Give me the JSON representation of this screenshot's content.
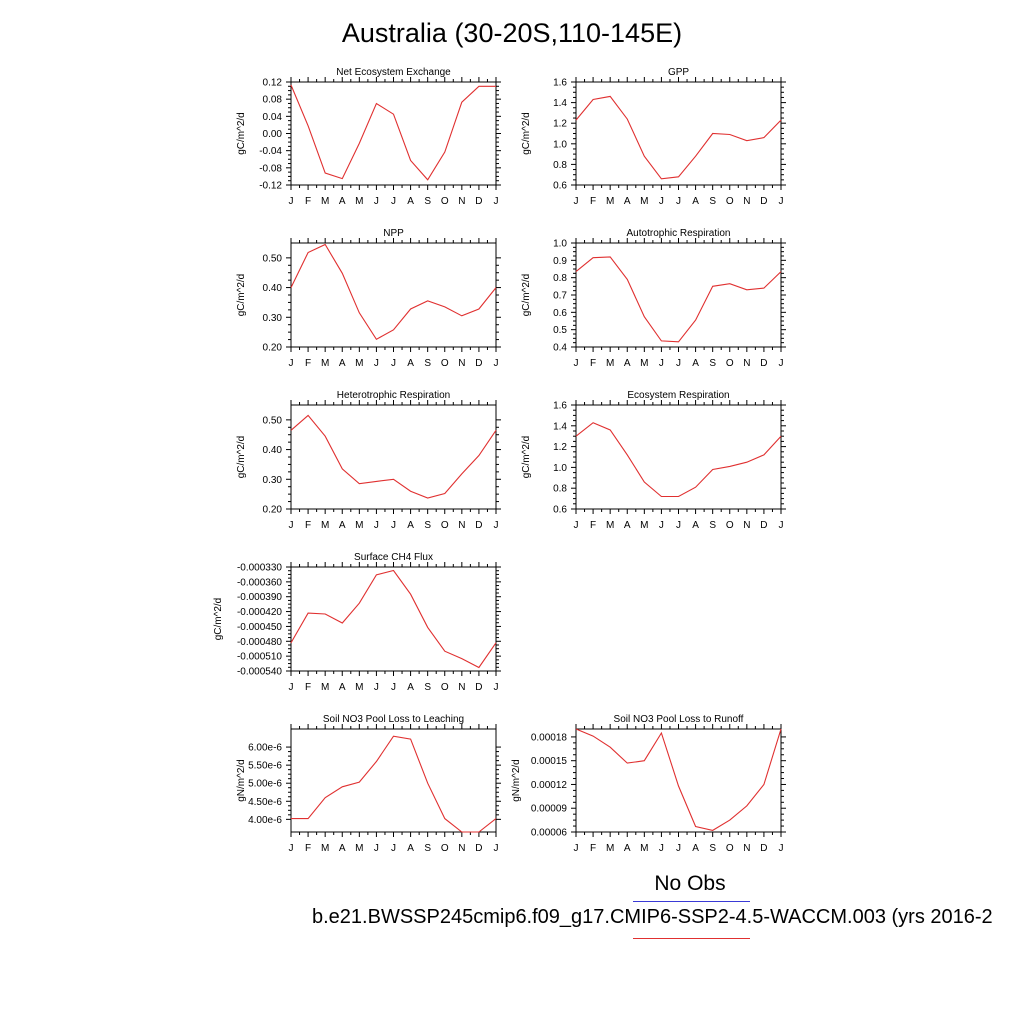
{
  "title": "Australia (30-20S,110-145E)",
  "legend": {
    "obs_label": "No Obs",
    "obs_color": "#3a3ad6",
    "case_label": "b.e21.BWSSP245cmip6.f09_g17.CMIP6-SSP2-4.5-WACCM.003 (yrs 2016-2",
    "case_color": "#e03030"
  },
  "chart_data": [
    {
      "type": "line",
      "title": "Net Ecosystem Exchange",
      "ylabel": "gC/m^2/d",
      "categories": [
        "J",
        "F",
        "M",
        "A",
        "M",
        "J",
        "J",
        "A",
        "S",
        "O",
        "N",
        "D",
        "J"
      ],
      "ylim": [
        -0.12,
        0.12
      ],
      "yticks": [
        0.12,
        0.08,
        0.04,
        0.0,
        -0.04,
        -0.08,
        -0.12
      ],
      "ytick_labels": [
        "0.12",
        "0.08",
        "0.04",
        "0.00",
        "-0.04",
        "-0.08",
        "-0.12"
      ],
      "series": [
        {
          "values": [
            0.113,
            0.018,
            -0.092,
            -0.105,
            -0.023,
            0.07,
            0.045,
            -0.063,
            -0.108,
            -0.043,
            0.073,
            0.11,
            0.11
          ]
        }
      ]
    },
    {
      "type": "line",
      "title": "GPP",
      "ylabel": "gC/m^2/d",
      "categories": [
        "J",
        "F",
        "M",
        "A",
        "M",
        "J",
        "J",
        "A",
        "S",
        "O",
        "N",
        "D",
        "J"
      ],
      "ylim": [
        0.6,
        1.6
      ],
      "yticks": [
        1.6,
        1.4,
        1.2,
        1.0,
        0.8,
        0.6
      ],
      "ytick_labels": [
        "1.6",
        "1.4",
        "1.2",
        "1.0",
        "0.8",
        "0.6"
      ],
      "series": [
        {
          "values": [
            1.23,
            1.43,
            1.46,
            1.24,
            0.88,
            0.66,
            0.68,
            0.88,
            1.1,
            1.09,
            1.03,
            1.06,
            1.23
          ]
        }
      ]
    },
    {
      "type": "line",
      "title": "NPP",
      "ylabel": "gC/m^2/d",
      "categories": [
        "J",
        "F",
        "M",
        "A",
        "M",
        "J",
        "J",
        "A",
        "S",
        "O",
        "N",
        "D",
        "J"
      ],
      "ylim": [
        0.2,
        0.55
      ],
      "yticks": [
        0.5,
        0.4,
        0.3,
        0.2
      ],
      "ytick_labels": [
        "0.50",
        "0.40",
        "0.30",
        "0.20"
      ],
      "series": [
        {
          "values": [
            0.4,
            0.518,
            0.545,
            0.448,
            0.315,
            0.226,
            0.258,
            0.328,
            0.355,
            0.335,
            0.305,
            0.328,
            0.4
          ]
        }
      ]
    },
    {
      "type": "line",
      "title": "Autotrophic Respiration",
      "ylabel": "gC/m^2/d",
      "categories": [
        "J",
        "F",
        "M",
        "A",
        "M",
        "J",
        "J",
        "A",
        "S",
        "O",
        "N",
        "D",
        "J"
      ],
      "ylim": [
        0.4,
        1.0
      ],
      "yticks": [
        1.0,
        0.9,
        0.8,
        0.7,
        0.6,
        0.5,
        0.4
      ],
      "ytick_labels": [
        "1.0",
        "0.9",
        "0.8",
        "0.7",
        "0.6",
        "0.5",
        "0.4"
      ],
      "series": [
        {
          "values": [
            0.835,
            0.915,
            0.92,
            0.79,
            0.575,
            0.435,
            0.43,
            0.555,
            0.75,
            0.765,
            0.73,
            0.74,
            0.835
          ]
        }
      ]
    },
    {
      "type": "line",
      "title": "Heterotrophic Respiration",
      "ylabel": "gC/m^2/d",
      "categories": [
        "J",
        "F",
        "M",
        "A",
        "M",
        "J",
        "J",
        "A",
        "S",
        "O",
        "N",
        "D",
        "J"
      ],
      "ylim": [
        0.2,
        0.55
      ],
      "yticks": [
        0.5,
        0.4,
        0.3,
        0.2
      ],
      "ytick_labels": [
        "0.50",
        "0.40",
        "0.30",
        "0.20"
      ],
      "series": [
        {
          "values": [
            0.465,
            0.515,
            0.445,
            0.335,
            0.285,
            0.293,
            0.3,
            0.26,
            0.237,
            0.252,
            0.318,
            0.38,
            0.465
          ]
        }
      ]
    },
    {
      "type": "line",
      "title": "Ecosystem Respiration",
      "ylabel": "gC/m^2/d",
      "categories": [
        "J",
        "F",
        "M",
        "A",
        "M",
        "J",
        "J",
        "A",
        "S",
        "O",
        "N",
        "D",
        "J"
      ],
      "ylim": [
        0.6,
        1.6
      ],
      "yticks": [
        1.6,
        1.4,
        1.2,
        1.0,
        0.8,
        0.6
      ],
      "ytick_labels": [
        "1.6",
        "1.4",
        "1.2",
        "1.0",
        "0.8",
        "0.6"
      ],
      "series": [
        {
          "values": [
            1.3,
            1.43,
            1.36,
            1.12,
            0.86,
            0.72,
            0.72,
            0.81,
            0.98,
            1.01,
            1.05,
            1.12,
            1.3
          ]
        }
      ]
    },
    {
      "type": "line",
      "title": "Surface CH4 Flux",
      "ylabel": "gC/m^2/d",
      "categories": [
        "J",
        "F",
        "M",
        "A",
        "M",
        "J",
        "J",
        "A",
        "S",
        "O",
        "N",
        "D",
        "J"
      ],
      "ylim": [
        -0.00054,
        -0.00033
      ],
      "yticks": [
        -0.00033,
        -0.00036,
        -0.00039,
        -0.00042,
        -0.00045,
        -0.00048,
        -0.00051,
        -0.00054
      ],
      "ytick_labels": [
        "-0.000330",
        "-0.000360",
        "-0.000390",
        "-0.000420",
        "-0.000450",
        "-0.000480",
        "-0.000510",
        "-0.000540"
      ],
      "series": [
        {
          "values": [
            -0.000483,
            -0.000423,
            -0.000425,
            -0.000443,
            -0.000403,
            -0.000346,
            -0.000337,
            -0.000385,
            -0.000452,
            -0.0005,
            -0.000515,
            -0.000533,
            -0.000483
          ]
        }
      ]
    },
    {
      "type": "line",
      "title": "Soil NO3 Pool Loss to Leaching",
      "ylabel": "gN/m^2/d",
      "categories": [
        "J",
        "F",
        "M",
        "A",
        "M",
        "J",
        "J",
        "A",
        "S",
        "O",
        "N",
        "D",
        "J"
      ],
      "ylim": [
        3.65e-06,
        6.5e-06
      ],
      "yticks": [
        6e-06,
        5.5e-06,
        5e-06,
        4.5e-06,
        4e-06
      ],
      "ytick_labels": [
        "6.00e-6",
        "5.50e-6",
        "5.00e-6",
        "4.50e-6",
        "4.00e-6"
      ],
      "series": [
        {
          "values": [
            4.02e-06,
            4.02e-06,
            4.6e-06,
            4.9e-06,
            5.03e-06,
            5.6e-06,
            6.3e-06,
            6.22e-06,
            5e-06,
            4.02e-06,
            3.65e-06,
            3.65e-06,
            4.02e-06
          ]
        }
      ]
    },
    {
      "type": "line",
      "title": "Soil NO3 Pool Loss to Runoff",
      "ylabel": "gN/m^2/d",
      "categories": [
        "J",
        "F",
        "M",
        "A",
        "M",
        "J",
        "J",
        "A",
        "S",
        "O",
        "N",
        "D",
        "J"
      ],
      "ylim": [
        6e-05,
        0.00019
      ],
      "yticks": [
        0.00018,
        0.00015,
        0.00012,
        9e-05,
        6e-05
      ],
      "ytick_labels": [
        "0.00018",
        "0.00015",
        "0.00012",
        "0.00009",
        "0.00006"
      ],
      "series": [
        {
          "values": [
            0.00019,
            0.000181,
            0.000167,
            0.000147,
            0.00015,
            0.000185,
            0.000118,
            6.7e-05,
            6.2e-05,
            7.5e-05,
            9.3e-05,
            0.00012,
            0.00019
          ]
        }
      ]
    }
  ]
}
